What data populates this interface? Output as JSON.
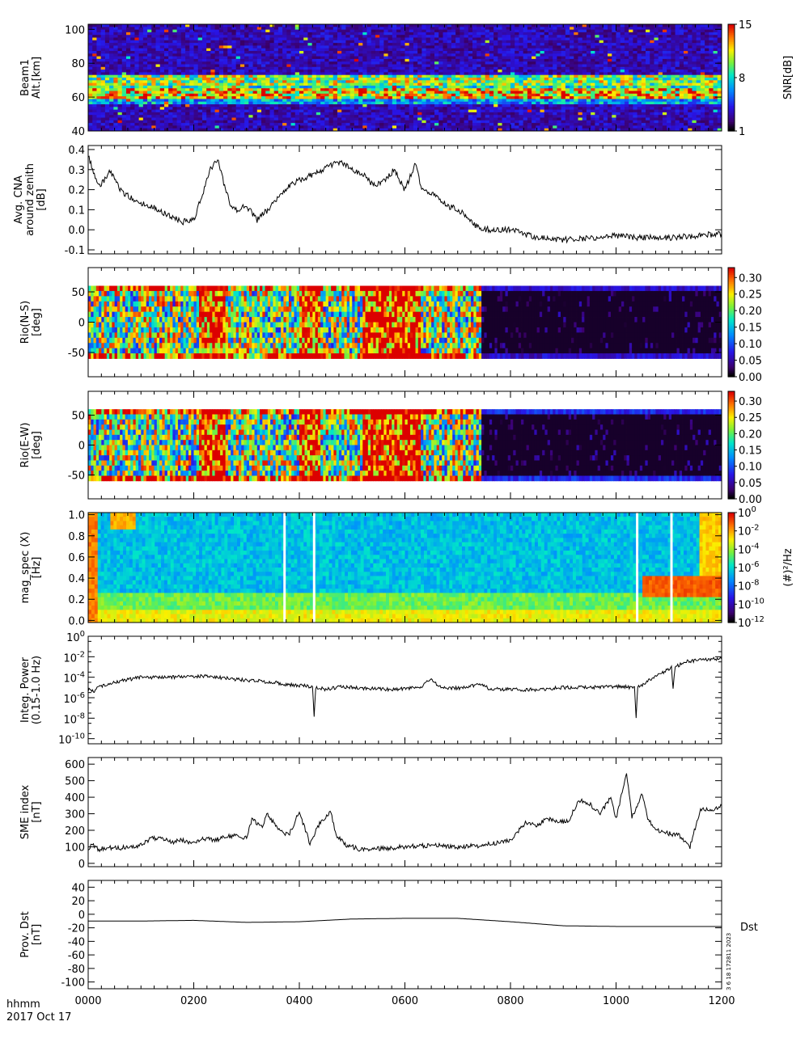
{
  "chart_data": [
    {
      "type": "heatmap",
      "ylabel_lines": [
        "Beam1",
        "Alt.[km]"
      ],
      "ylim": [
        40,
        103
      ],
      "yticks": [
        "100",
        "80",
        "60",
        "40"
      ],
      "yticks_values": [
        100,
        80,
        60,
        40
      ],
      "colorbar": {
        "label": "SNR[dB]",
        "ticks": [
          "15",
          "8",
          "1"
        ],
        "ticks_values": [
          15,
          8,
          1
        ],
        "range": [
          1,
          15
        ]
      },
      "structure": {
        "background_level": 2,
        "bands": [
          {
            "alt_center": 70,
            "width": 3,
            "level": 12
          },
          {
            "alt_center": 66,
            "width": 3,
            "level": 10
          },
          {
            "alt_center": 62,
            "width": 3,
            "level": 14
          },
          {
            "alt_center": 58,
            "width": 2,
            "level": 8
          }
        ]
      }
    },
    {
      "type": "line",
      "ylabel_lines": [
        "Avg. CNA",
        "around zenith",
        "[dB]"
      ],
      "ylim": [
        -0.12,
        0.42
      ],
      "yticks": [
        "0.4",
        "0.3",
        "0.2",
        "0.1",
        "0.0",
        "-0.1"
      ],
      "yticks_values": [
        0.4,
        0.3,
        0.2,
        0.1,
        0.0,
        -0.1
      ],
      "x_hours": [
        0.0,
        0.1,
        0.2,
        0.3,
        0.4,
        0.5,
        0.6,
        0.8,
        1.0,
        1.2,
        1.4,
        1.6,
        1.8,
        2.0,
        2.2,
        2.3,
        2.45,
        2.6,
        2.7,
        2.8,
        3.0,
        3.2,
        3.4,
        3.6,
        3.8,
        4.0,
        4.3,
        4.6,
        4.8,
        5.0,
        5.2,
        5.4,
        5.6,
        5.8,
        6.0,
        6.2,
        6.3,
        6.5,
        6.8,
        7.0,
        7.2,
        7.3,
        7.4,
        7.6,
        8.0,
        8.5,
        9.0,
        9.5,
        10.0,
        10.5,
        11.0,
        11.5,
        12.0
      ],
      "values": [
        0.38,
        0.28,
        0.22,
        0.24,
        0.3,
        0.25,
        0.2,
        0.16,
        0.13,
        0.12,
        0.09,
        0.06,
        0.04,
        0.05,
        0.2,
        0.3,
        0.35,
        0.2,
        0.12,
        0.1,
        0.12,
        0.05,
        0.1,
        0.16,
        0.22,
        0.25,
        0.28,
        0.32,
        0.34,
        0.3,
        0.28,
        0.22,
        0.24,
        0.3,
        0.2,
        0.33,
        0.22,
        0.18,
        0.12,
        0.1,
        0.06,
        0.03,
        0.01,
        0.0,
        0.0,
        -0.04,
        -0.05,
        -0.04,
        -0.03,
        -0.04,
        -0.04,
        -0.03,
        -0.02
      ]
    },
    {
      "type": "heatmap",
      "ylabel_lines": [
        "Rio(N-S)",
        "[deg]"
      ],
      "ylim": [
        -90,
        90
      ],
      "data_extent": [
        -60,
        60
      ],
      "yticks": [
        "50",
        "0",
        "-50"
      ],
      "yticks_values": [
        50,
        0,
        -50
      ],
      "colorbar": {
        "label": "",
        "ticks": [
          "0.30",
          "0.25",
          "0.20",
          "0.15",
          "0.10",
          "0.05",
          "0.00"
        ],
        "ticks_values": [
          0.3,
          0.25,
          0.2,
          0.15,
          0.1,
          0.05,
          0.0
        ],
        "range": [
          0,
          0.33
        ]
      },
      "structure": {
        "active_until_hour": 7.45,
        "active_level": 0.2,
        "quiet_level": 0.01,
        "edge_level": 0.04
      }
    },
    {
      "type": "heatmap",
      "ylabel_lines": [
        "Rio(E-W)",
        "[deg]"
      ],
      "ylim": [
        -90,
        90
      ],
      "data_extent": [
        -60,
        60
      ],
      "yticks": [
        "50",
        "0",
        "-50"
      ],
      "yticks_values": [
        50,
        0,
        -50
      ],
      "colorbar": {
        "label": "",
        "ticks": [
          "0.30",
          "0.25",
          "0.20",
          "0.15",
          "0.10",
          "0.05",
          "0.00"
        ],
        "ticks_values": [
          0.3,
          0.25,
          0.2,
          0.15,
          0.1,
          0.05,
          0.0
        ],
        "range": [
          0,
          0.33
        ]
      },
      "structure": {
        "active_until_hour": 7.45,
        "active_level": 0.2,
        "quiet_level": 0.01,
        "edge_level": 0.06
      }
    },
    {
      "type": "heatmap",
      "ylabel_lines": [
        "mag_spec (X)",
        "[Hz]"
      ],
      "ylim": [
        -0.02,
        1.02
      ],
      "yticks": [
        "1.0",
        "0.8",
        "0.6",
        "0.4",
        "0.2",
        "0.0"
      ],
      "yticks_values": [
        1.0,
        0.8,
        0.6,
        0.4,
        0.2,
        0.0
      ],
      "colorbar": {
        "label": "(#)²/Hz",
        "ticks": [
          {
            "base": "10",
            "exp": "0"
          },
          {
            "base": "10",
            "exp": "-2"
          },
          {
            "base": "10",
            "exp": "-4"
          },
          {
            "base": "10",
            "exp": "-6"
          },
          {
            "base": "10",
            "exp": "-8"
          },
          {
            "base": "10",
            "exp": "-10"
          },
          {
            "base": "10",
            "exp": "-12"
          }
        ],
        "ticks_values": [
          0,
          -2,
          -4,
          -6,
          -8,
          -10,
          -12
        ],
        "range": [
          -12,
          0
        ]
      },
      "gaps_hours": [
        3.72,
        4.28,
        10.4,
        11.05
      ]
    },
    {
      "type": "line",
      "ylabel_lines": [
        "Integ. Power",
        "(0.15-1.0 Hz)"
      ],
      "yscale": "log",
      "ylim_log10": [
        -10.5,
        0
      ],
      "yticks": [
        {
          "base": "10",
          "exp": "0"
        },
        {
          "base": "10",
          "exp": "-2"
        },
        {
          "base": "10",
          "exp": "-4"
        },
        {
          "base": "10",
          "exp": "-6"
        },
        {
          "base": "10",
          "exp": "-8"
        },
        {
          "base": "10",
          "exp": "-10"
        }
      ],
      "yticks_values": [
        0,
        -2,
        -4,
        -6,
        -8,
        -10
      ],
      "x_hours": [
        0.0,
        0.1,
        0.2,
        0.3,
        0.5,
        0.8,
        1.0,
        1.3,
        1.6,
        2.0,
        2.3,
        2.6,
        3.0,
        3.5,
        3.9,
        4.25,
        4.28,
        4.31,
        4.5,
        4.8,
        5.2,
        5.8,
        6.3,
        6.5,
        6.6,
        6.8,
        7.2,
        7.4,
        7.6,
        8.0,
        8.5,
        9.0,
        9.5,
        10.0,
        10.35,
        10.38,
        10.41,
        10.6,
        10.9,
        11.05,
        11.08,
        11.12,
        11.3,
        11.6,
        12.0
      ],
      "values_log10": [
        -5.2,
        -5.4,
        -5.0,
        -4.8,
        -4.5,
        -4.2,
        -4.0,
        -4.0,
        -4.0,
        -3.9,
        -3.9,
        -4.1,
        -4.3,
        -4.5,
        -4.8,
        -4.9,
        -7.7,
        -5.0,
        -5.2,
        -4.9,
        -5.1,
        -5.2,
        -5.0,
        -4.1,
        -4.7,
        -5.1,
        -5.0,
        -4.6,
        -5.1,
        -5.2,
        -5.2,
        -5.0,
        -5.0,
        -4.9,
        -5.0,
        -8.0,
        -5.0,
        -4.4,
        -3.5,
        -3.0,
        -5.2,
        -3.0,
        -2.5,
        -2.3,
        -2.2
      ]
    },
    {
      "type": "line",
      "ylabel_lines": [
        "SME index",
        "[nT]"
      ],
      "ylim": [
        -20,
        640
      ],
      "yticks": [
        "600",
        "500",
        "400",
        "300",
        "200",
        "100",
        "0"
      ],
      "yticks_values": [
        600,
        500,
        400,
        300,
        200,
        100,
        0
      ],
      "x_hours": [
        0.0,
        0.1,
        0.2,
        0.4,
        0.6,
        0.8,
        1.0,
        1.2,
        1.4,
        1.6,
        1.8,
        2.0,
        2.2,
        2.4,
        2.6,
        2.8,
        3.0,
        3.1,
        3.3,
        3.4,
        3.6,
        3.8,
        4.0,
        4.2,
        4.4,
        4.6,
        4.7,
        4.9,
        5.2,
        5.6,
        6.0,
        6.5,
        7.0,
        7.5,
        8.0,
        8.3,
        8.5,
        8.7,
        8.9,
        9.1,
        9.3,
        9.5,
        9.7,
        9.9,
        10.0,
        10.2,
        10.3,
        10.5,
        10.6,
        10.8,
        11.0,
        11.2,
        11.4,
        11.6,
        11.8,
        12.0
      ],
      "values": [
        95,
        110,
        85,
        95,
        90,
        105,
        110,
        155,
        150,
        130,
        140,
        120,
        150,
        140,
        160,
        170,
        150,
        260,
        230,
        300,
        200,
        170,
        310,
        120,
        250,
        310,
        170,
        110,
        80,
        90,
        100,
        110,
        100,
        110,
        140,
        250,
        230,
        270,
        250,
        260,
        380,
        360,
        300,
        400,
        270,
        540,
        280,
        420,
        260,
        200,
        180,
        170,
        100,
        330,
        320,
        350
      ]
    },
    {
      "type": "line",
      "ylabel_lines": [
        "Prov. Dst",
        "[nT]"
      ],
      "ylim": [
        -110,
        50
      ],
      "yticks": [
        "40",
        "20",
        "0",
        "-20",
        "-40",
        "-60",
        "-80",
        "-100"
      ],
      "yticks_values": [
        40,
        20,
        0,
        -20,
        -40,
        -60,
        -80,
        -100
      ],
      "series_label": "Dst",
      "x_hours": [
        0,
        1,
        2,
        3,
        4,
        5,
        6,
        7,
        8,
        9,
        10,
        11,
        12
      ],
      "values": [
        -10,
        -10,
        -9,
        -12,
        -11,
        -7,
        -6,
        -6,
        -11,
        -17,
        -18,
        -18,
        -18
      ]
    }
  ],
  "x_axis": {
    "tick_labels": [
      "0000",
      "0200",
      "0400",
      "0600",
      "0800",
      "1000",
      "1200"
    ],
    "tick_hours": [
      0,
      2,
      4,
      6,
      8,
      10,
      12
    ],
    "range_hours": [
      0,
      12
    ],
    "unit_label": "hhmm",
    "date_label": "2017 Oct 17"
  },
  "stamp": "3   6 18 172811 2023",
  "colors": {
    "axis": "#000000",
    "line": "#000000",
    "background": "#ffffff",
    "gap": "#ffffff"
  }
}
